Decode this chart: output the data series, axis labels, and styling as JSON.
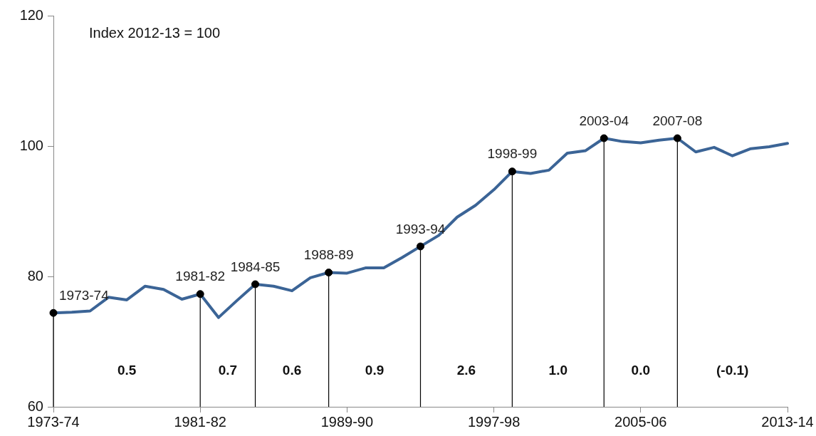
{
  "chart_data": {
    "type": "line",
    "ylim": [
      60,
      120
    ],
    "categories": [
      "1973-74",
      null,
      null,
      null,
      null,
      null,
      null,
      null,
      "1981-82",
      null,
      null,
      null,
      null,
      null,
      null,
      null,
      "1989-90",
      null,
      null,
      null,
      null,
      null,
      null,
      null,
      "1997-98",
      null,
      null,
      null,
      null,
      null,
      null,
      null,
      "2005-06",
      null,
      null,
      null,
      null,
      null,
      null,
      null,
      "2013-14"
    ],
    "yticks": [
      60,
      80,
      100,
      120
    ],
    "legend": false,
    "series": [
      {
        "color": "#3b6496",
        "values": [
          74.4,
          74.5,
          74.7,
          76.8,
          76.4,
          78.5,
          78.0,
          76.5,
          77.3,
          73.7,
          76.3,
          78.8,
          78.5,
          77.8,
          79.8,
          80.6,
          80.5,
          81.3,
          81.3,
          82.9,
          84.6,
          86.3,
          89.1,
          90.9,
          93.3,
          96.1,
          95.8,
          96.3,
          98.9,
          99.3,
          101.2,
          100.7,
          100.5,
          100.9,
          101.2,
          99.1,
          99.8,
          98.5,
          99.6,
          99.9,
          100.4
        ]
      },
      {
        "type": "lollipop",
        "color": "#000000",
        "values": [
          74.4,
          null,
          null,
          null,
          null,
          null,
          null,
          null,
          77.3,
          null,
          null,
          78.8,
          null,
          null,
          null,
          80.6,
          null,
          null,
          null,
          null,
          84.6,
          null,
          null,
          null,
          null,
          96.1,
          null,
          null,
          null,
          null,
          101.2,
          null,
          null,
          null,
          101.2,
          null,
          null,
          null,
          null,
          null,
          null
        ],
        "value_labels": [
          "1973-74",
          null,
          null,
          null,
          null,
          null,
          null,
          null,
          "1981-82",
          null,
          null,
          "1984-85",
          null,
          null,
          null,
          "1988-89",
          null,
          null,
          null,
          null,
          "1993-94",
          null,
          null,
          null,
          null,
          "1998-99",
          null,
          null,
          null,
          null,
          "2003-04",
          null,
          null,
          null,
          "2007-08",
          null,
          null,
          null,
          null,
          null,
          null
        ]
      }
    ],
    "annotations": [
      "Index 2012-13 = 100",
      "0.5",
      "0.7",
      "0.6",
      "0.9",
      "2.6",
      "1.0",
      "0.0",
      "(-0.1)"
    ]
  }
}
